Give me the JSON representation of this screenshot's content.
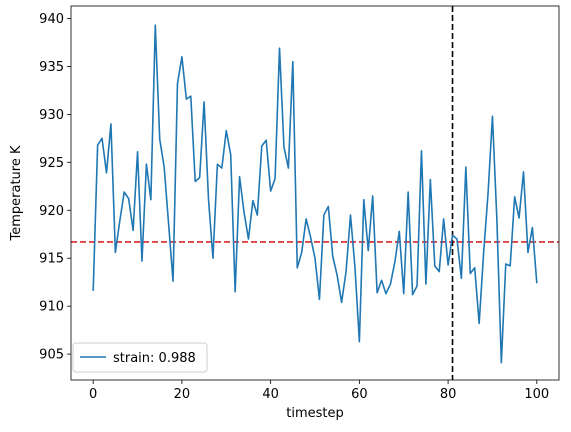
{
  "chart_data": {
    "type": "line",
    "title": "",
    "xlabel": "timestep",
    "ylabel": "Temperature K",
    "xlim": [
      -5,
      105
    ],
    "ylim": [
      902.3,
      941.3
    ],
    "xticks": [
      0,
      20,
      40,
      60,
      80,
      100
    ],
    "yticks": [
      905,
      910,
      915,
      920,
      925,
      930,
      935,
      940
    ],
    "grid": false,
    "legend_position": "lower-left",
    "series": [
      {
        "name": "strain: 0.988",
        "color": "#1f77b4",
        "x": [
          0,
          1,
          2,
          3,
          4,
          5,
          6,
          7,
          8,
          9,
          10,
          11,
          12,
          13,
          14,
          15,
          16,
          17,
          18,
          19,
          20,
          21,
          22,
          23,
          24,
          25,
          26,
          27,
          28,
          29,
          30,
          31,
          32,
          33,
          34,
          35,
          36,
          37,
          38,
          39,
          40,
          41,
          42,
          43,
          44,
          45,
          46,
          47,
          48,
          49,
          50,
          51,
          52,
          53,
          54,
          55,
          56,
          57,
          58,
          59,
          60,
          61,
          62,
          63,
          64,
          65,
          66,
          67,
          68,
          69,
          70,
          71,
          72,
          73,
          74,
          75,
          76,
          77,
          78,
          79,
          80,
          81,
          82,
          83,
          84,
          85,
          86,
          87,
          88,
          89,
          90,
          91,
          92,
          93,
          94,
          95,
          96,
          97,
          98,
          99,
          100
        ],
        "y": [
          911.6,
          926.8,
          927.5,
          923.9,
          929.0,
          915.6,
          918.9,
          921.9,
          921.2,
          917.9,
          926.1,
          914.7,
          924.8,
          921.1,
          939.3,
          927.4,
          924.5,
          918.6,
          912.6,
          933.2,
          936.0,
          931.6,
          931.9,
          923.0,
          923.4,
          931.3,
          921.1,
          915.0,
          924.8,
          924.4,
          928.3,
          925.8,
          911.5,
          923.5,
          919.8,
          917.0,
          921.0,
          919.5,
          926.7,
          927.3,
          922.0,
          923.3,
          936.9,
          926.6,
          924.4,
          935.5,
          914.0,
          915.6,
          919.1,
          917.2,
          915.0,
          910.7,
          919.5,
          920.4,
          915.2,
          913.2,
          910.4,
          913.6,
          919.5,
          914.1,
          906.3,
          921.1,
          915.8,
          921.5,
          911.4,
          912.7,
          911.3,
          912.3,
          914.6,
          917.8,
          911.3,
          921.9,
          911.2,
          912.1,
          926.2,
          912.3,
          923.2,
          914.2,
          913.6,
          919.1,
          914.3,
          917.4,
          917.0,
          912.9,
          924.5,
          913.4,
          914.0,
          908.2,
          915.5,
          921.7,
          929.8,
          919.0,
          904.1,
          914.4,
          914.2,
          921.4,
          919.2,
          924.0,
          915.6,
          918.2,
          912.4
        ]
      }
    ],
    "reference_lines": {
      "horizontal": {
        "y": 916.7,
        "color": "#d62728",
        "style": "dashed"
      },
      "vertical": {
        "x": 81,
        "color": "#000000",
        "style": "dashed"
      }
    }
  }
}
